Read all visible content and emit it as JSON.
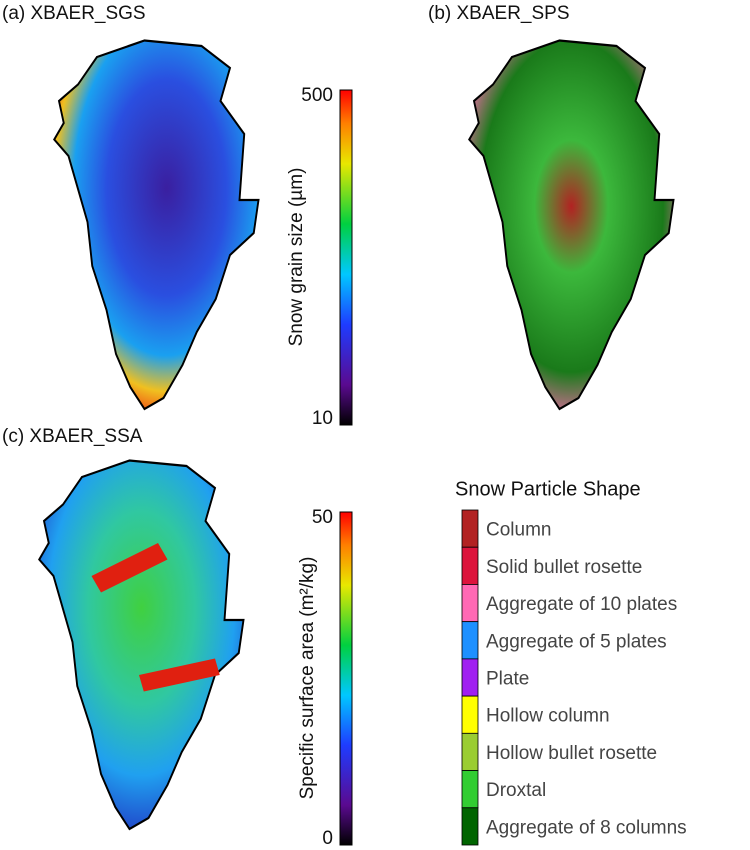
{
  "panels": [
    {
      "label": "(a) XBAER_SGS"
    },
    {
      "label": "(b) XBAER_SPS"
    },
    {
      "label": "(c) XBAER_SSA"
    }
  ],
  "colorbars": [
    {
      "label": "Snow grain size (µm)",
      "lim": [
        10,
        500
      ],
      "ticks": [
        10,
        500
      ]
    },
    {
      "label": "Specific surface area (m²/kg)",
      "lim": [
        0,
        50
      ],
      "ticks": [
        0,
        50
      ]
    }
  ],
  "legend": {
    "title": "Snow Particle Shape",
    "items": [
      {
        "name": "Column",
        "color": "#b22222"
      },
      {
        "name": "Solid bullet rosette",
        "color": "#dc143c"
      },
      {
        "name": "Aggregate of 10 plates",
        "color": "#ff69b4"
      },
      {
        "name": "Aggregate of 5 plates",
        "color": "#1e90ff"
      },
      {
        "name": "Plate",
        "color": "#a020f0"
      },
      {
        "name": "Hollow column",
        "color": "#ffff00"
      },
      {
        "name": "Hollow bullet rosette",
        "color": "#9acd32"
      },
      {
        "name": "Droxtal",
        "color": "#32cd32"
      },
      {
        "name": "Aggregate of 8 columns",
        "color": "#006400"
      }
    ]
  }
}
